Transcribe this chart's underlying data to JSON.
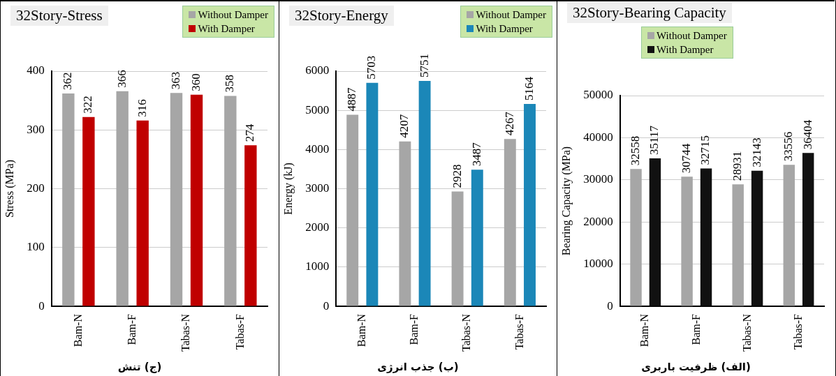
{
  "chart_data": [
    {
      "type": "bar",
      "title": "32Story-Stress",
      "ylabel": "Stress (MPa)",
      "categories": [
        "Bam-N",
        "Bam-F",
        "Tabas-N",
        "Tabas-F"
      ],
      "series": [
        {
          "name": "Without Damper",
          "color": "#a6a6a6",
          "values": [
            362,
            366,
            363,
            358
          ]
        },
        {
          "name": "With Damper",
          "color": "#c00000",
          "values": [
            322,
            316,
            360,
            274
          ]
        }
      ],
      "ylim": [
        0,
        400
      ],
      "yticks": [
        0,
        100,
        200,
        300,
        400
      ],
      "grid": "y",
      "legend": "top right",
      "data_labels": true,
      "annotations": [
        "(ج) تنش"
      ]
    },
    {
      "type": "bar",
      "title": "32Story-Energy",
      "ylabel": "Energy (kJ)",
      "categories": [
        "Bam-N",
        "Bam-F",
        "Tabas-N",
        "Tabas-F"
      ],
      "series": [
        {
          "name": "Without Damper",
          "color": "#a6a6a6",
          "values": [
            4887,
            4207,
            2928,
            4267
          ]
        },
        {
          "name": "With Damper",
          "color": "#1b87b8",
          "values": [
            5703,
            5751,
            3487,
            5164
          ]
        }
      ],
      "ylim": [
        0,
        6000
      ],
      "yticks": [
        0,
        1000,
        2000,
        3000,
        4000,
        5000,
        6000
      ],
      "grid": "y",
      "legend": "top right",
      "data_labels": true,
      "annotations": [
        "(ب) جذب انرژی"
      ]
    },
    {
      "type": "bar",
      "title": "32Story-Bearing Capacity",
      "ylabel": "Bearing Capacity (MPa)",
      "categories": [
        "Bam-N",
        "Bam-F",
        "Tabas-N",
        "Tabas-F"
      ],
      "series": [
        {
          "name": "Without Damper",
          "color": "#a6a6a6",
          "values": [
            32558,
            30744,
            28931,
            33556
          ]
        },
        {
          "name": "With Damper",
          "color": "#111111",
          "values": [
            35117,
            32715,
            32143,
            36404
          ]
        }
      ],
      "ylim": [
        0,
        50000
      ],
      "yticks": [
        0,
        10000,
        20000,
        30000,
        40000,
        50000
      ],
      "grid": "y",
      "legend": "top",
      "data_labels": true,
      "annotations": [
        "(الف) ظرفیت باربری"
      ]
    }
  ]
}
